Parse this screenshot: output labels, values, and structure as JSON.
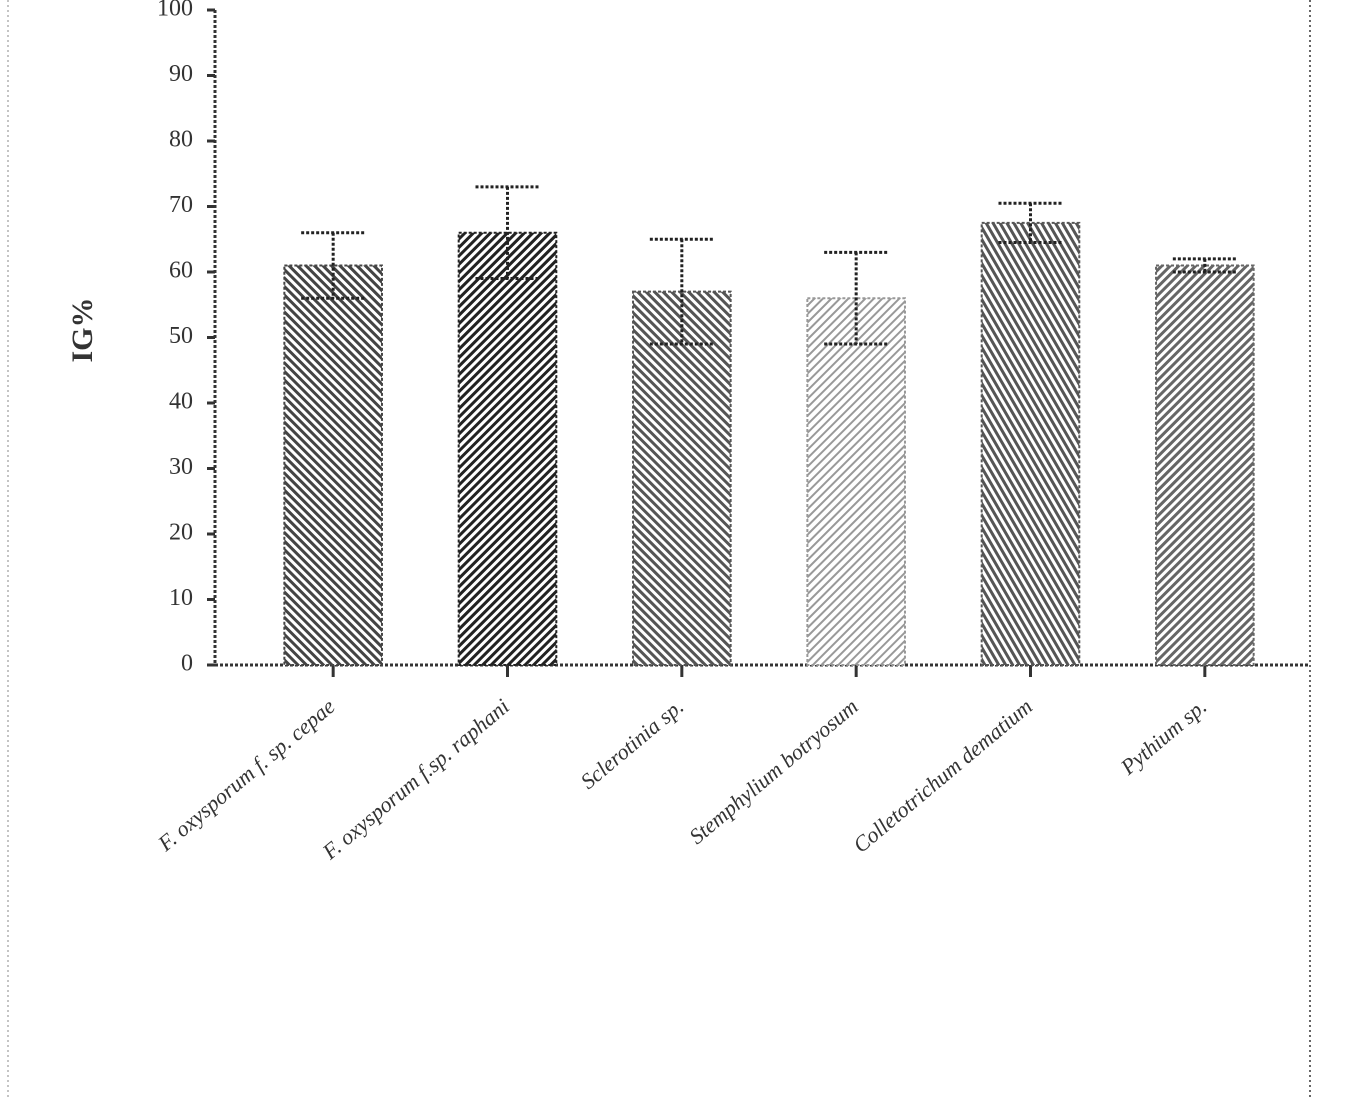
{
  "chart_data": {
    "type": "bar",
    "y_label": "IG%",
    "categories": [
      "F. oxysporum f. sp. cepae",
      "F. oxysporum f.sp. raphani",
      "Sclerotinia sp.",
      "Stemphylium botryosum",
      "Colletotrichum dematium",
      "Pythium sp."
    ],
    "values": [
      61,
      66,
      57,
      56,
      67.5,
      61
    ],
    "errors": [
      5,
      7,
      8,
      7,
      3,
      1
    ],
    "colors": [
      "#444444",
      "#222222",
      "#555555",
      "#999999",
      "#555555",
      "#666666"
    ],
    "ylim": [
      0,
      100
    ],
    "yticks": [
      0,
      10,
      20,
      30,
      40,
      50,
      60,
      70,
      80,
      90,
      100
    ]
  }
}
